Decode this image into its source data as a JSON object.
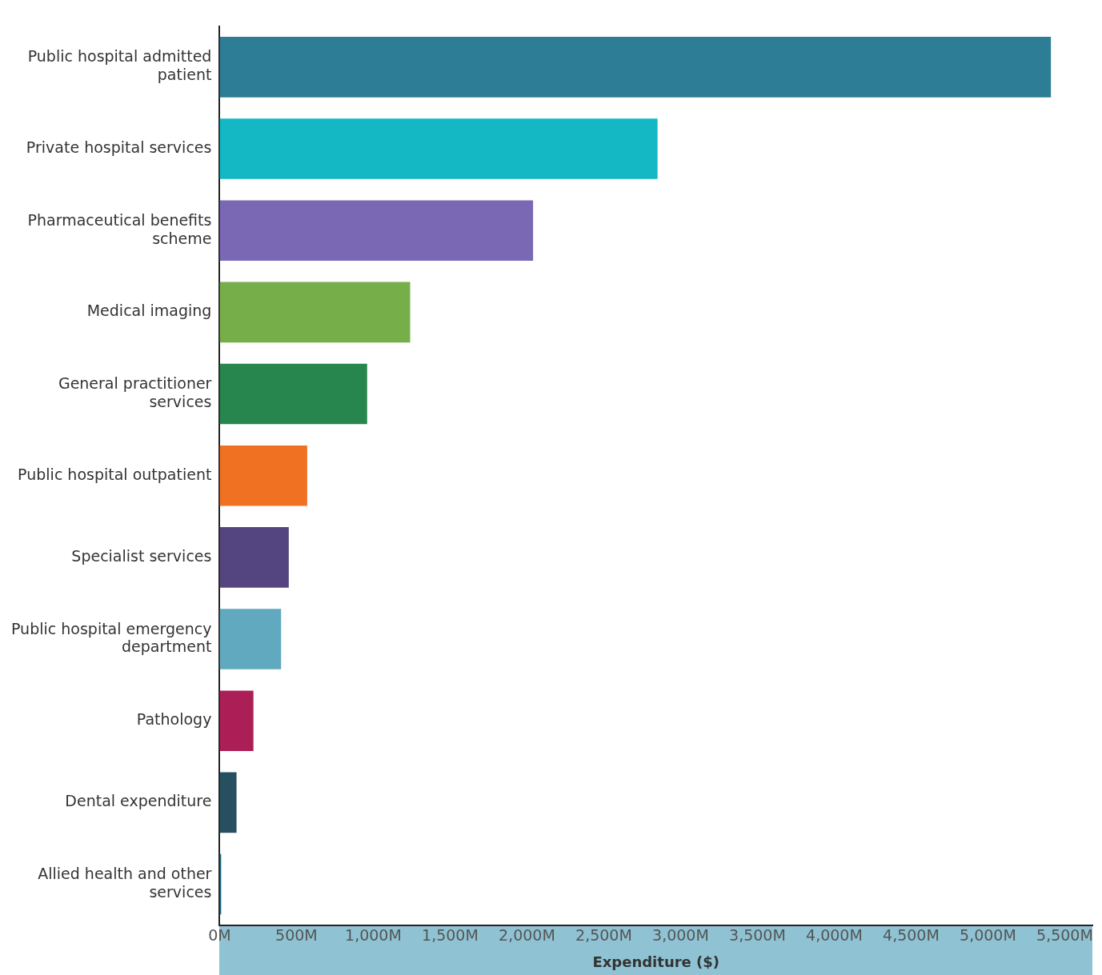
{
  "chart_data": {
    "type": "bar",
    "orientation": "horizontal",
    "xlabel": "Expenditure ($)",
    "categories": [
      "Public hospital admitted patient",
      "Private hospital services",
      "Pharmaceutical benefits scheme",
      "Medical imaging",
      "General practitioner services",
      "Public hospital outpatient",
      "Specialist services",
      "Public hospital emergency department",
      "Pathology",
      "Dental expenditure",
      "Allied health and other services"
    ],
    "values": [
      5410,
      2850,
      2040,
      1240,
      960,
      570,
      450,
      400,
      220,
      110,
      10
    ],
    "colors": [
      "#2e7d96",
      "#13b8c4",
      "#7b68b5",
      "#76ae4a",
      "#27864e",
      "#f07122",
      "#544580",
      "#60a9bf",
      "#ab1f56",
      "#264f60",
      "#1a6d80"
    ],
    "xlim": [
      0,
      5680
    ],
    "xticks": [
      {
        "value": 0,
        "label": "0M"
      },
      {
        "value": 500,
        "label": "500M"
      },
      {
        "value": 1000,
        "label": "1,000M"
      },
      {
        "value": 1500,
        "label": "1,500M"
      },
      {
        "value": 2000,
        "label": "2,000M"
      },
      {
        "value": 2500,
        "label": "2,500M"
      },
      {
        "value": 3000,
        "label": "3,000M"
      },
      {
        "value": 3500,
        "label": "3,500M"
      },
      {
        "value": 4000,
        "label": "4,000M"
      },
      {
        "value": 4500,
        "label": "4,500M"
      },
      {
        "value": 5000,
        "label": "5,000M"
      },
      {
        "value": 5500,
        "label": "5,500M"
      }
    ],
    "grid": false,
    "legend": false
  }
}
